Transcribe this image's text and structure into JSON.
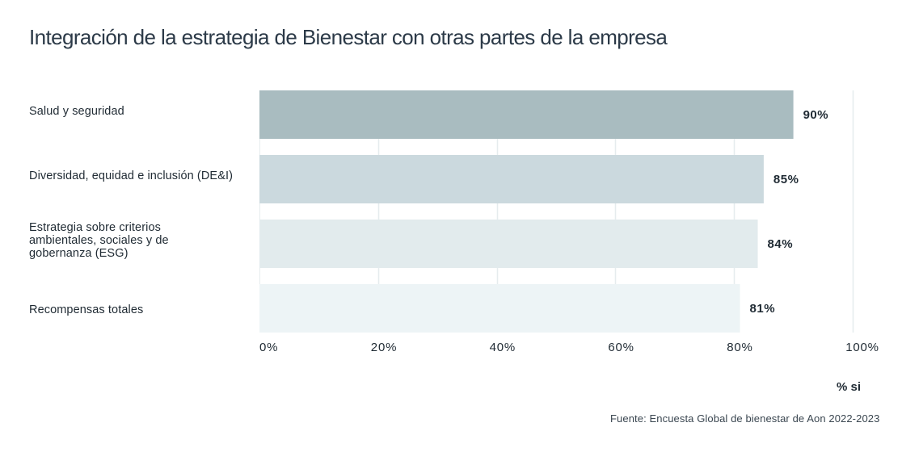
{
  "chart_data": {
    "type": "bar",
    "orientation": "horizontal",
    "title": "Integración de la estrategia de Bienestar con otras partes de la empresa",
    "categories": [
      "Salud y seguridad",
      "Diversidad, equidad e inclusión (DE&I)",
      "Estrategia sobre criterios ambientales, sociales y de gobernanza  (ESG)",
      "Recompensas totales"
    ],
    "category_lines": [
      [
        "Salud y seguridad"
      ],
      [
        "Diversidad, equidad e inclusión (DE&I)"
      ],
      [
        "Estrategia sobre criterios",
        "ambientales, sociales y de",
        "gobernanza  (ESG)"
      ],
      [
        "Recompensas totales"
      ]
    ],
    "values": [
      90,
      85,
      84,
      81
    ],
    "value_labels": [
      "90%",
      "85%",
      "84%",
      "81%"
    ],
    "bar_colors": [
      "#a9bcc0",
      "#cbd9de",
      "#e2ebed",
      "#edf4f6"
    ],
    "xlabel": "% si",
    "ylabel": "",
    "xlim": [
      0,
      100
    ],
    "xticks": [
      0,
      20,
      40,
      60,
      80,
      100
    ],
    "xtick_labels": [
      "0%",
      "20%",
      "40%",
      "60%",
      "80%",
      "100%"
    ],
    "grid": true,
    "legend": "none",
    "source": "Fuente: Encuesta Global de bienestar de Aon 2022-2023"
  }
}
